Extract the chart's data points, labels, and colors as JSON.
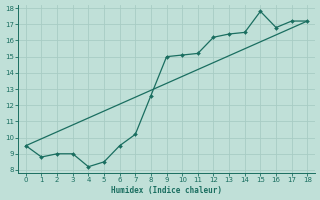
{
  "xlabel": "Humidex (Indice chaleur)",
  "bg_color": "#c0e0d8",
  "line_color": "#1a6e60",
  "grid_color": "#a8ccc4",
  "xlim": [
    -0.5,
    18.5
  ],
  "ylim": [
    7.8,
    18.2
  ],
  "xticks": [
    0,
    1,
    2,
    3,
    4,
    5,
    6,
    7,
    8,
    9,
    10,
    11,
    12,
    13,
    14,
    15,
    16,
    17,
    18
  ],
  "yticks": [
    8,
    9,
    10,
    11,
    12,
    13,
    14,
    15,
    16,
    17,
    18
  ],
  "curve1_x": [
    0,
    1,
    2,
    3,
    4,
    5,
    6,
    7,
    8,
    9,
    10,
    11,
    12,
    13,
    14,
    15,
    16,
    17,
    18
  ],
  "curve1_y": [
    9.5,
    8.8,
    9.0,
    9.0,
    8.2,
    8.5,
    9.5,
    10.2,
    12.6,
    15.0,
    15.1,
    15.2,
    16.2,
    16.4,
    16.5,
    17.8,
    16.8,
    17.2,
    17.2
  ],
  "curve2_x": [
    0,
    18
  ],
  "curve2_y": [
    9.5,
    17.2
  ],
  "marker_x": [
    0,
    1,
    2,
    3,
    4,
    5,
    6,
    7,
    8,
    9,
    10,
    11,
    12,
    13,
    14,
    15,
    16,
    17,
    18
  ],
  "marker_y": [
    9.5,
    8.8,
    9.0,
    9.0,
    8.2,
    8.5,
    9.5,
    10.2,
    12.6,
    15.0,
    15.1,
    15.2,
    16.2,
    16.4,
    16.5,
    17.8,
    16.8,
    17.2,
    17.2
  ]
}
